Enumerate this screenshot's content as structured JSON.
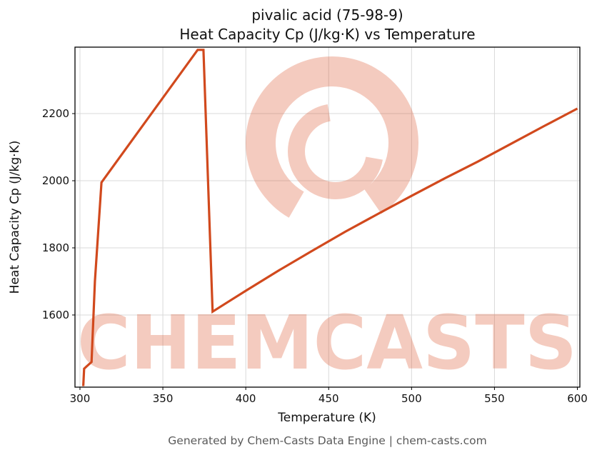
{
  "header": {
    "title_line1": "pivalic acid (75-98-9)",
    "title_line2": "Heat Capacity Cp (J/kg·K) vs Temperature"
  },
  "footer": {
    "text": "Generated by Chem-Casts Data Engine | chem-casts.com"
  },
  "watermark": {
    "text": "CHEMCASTS",
    "color": "#d9532a",
    "opacity": 0.3
  },
  "chart_data": {
    "type": "line",
    "title": "pivalic acid (75-98-9)\nHeat Capacity Cp (J/kg·K) vs Temperature",
    "xlabel": "Temperature (K)",
    "ylabel": "Heat Capacity Cp (J/kg·K)",
    "xlim": [
      297,
      601.5
    ],
    "ylim": [
      1385,
      2398
    ],
    "xticks": [
      300,
      350,
      400,
      450,
      500,
      550,
      600
    ],
    "yticks": [
      1600,
      1800,
      2000,
      2200
    ],
    "grid": true,
    "legend": false,
    "line_color": "#d1491d",
    "line_width": 3.2,
    "series": [
      {
        "name": "Heat Capacity Cp (J/kg·K)",
        "x": [
          302,
          302.5,
          304,
          307,
          309,
          313,
          371,
          374.5,
          380,
          390,
          400,
          420,
          440,
          460,
          480,
          500,
          520,
          540,
          560,
          580,
          600
        ],
        "y": [
          1388,
          1440,
          1447,
          1460,
          1700,
          1995,
          2390,
          2390,
          1610,
          1641,
          1672,
          1733,
          1791,
          1848,
          1902,
          1955,
          2007,
          2057,
          2110,
          2163,
          2215
        ]
      }
    ]
  }
}
